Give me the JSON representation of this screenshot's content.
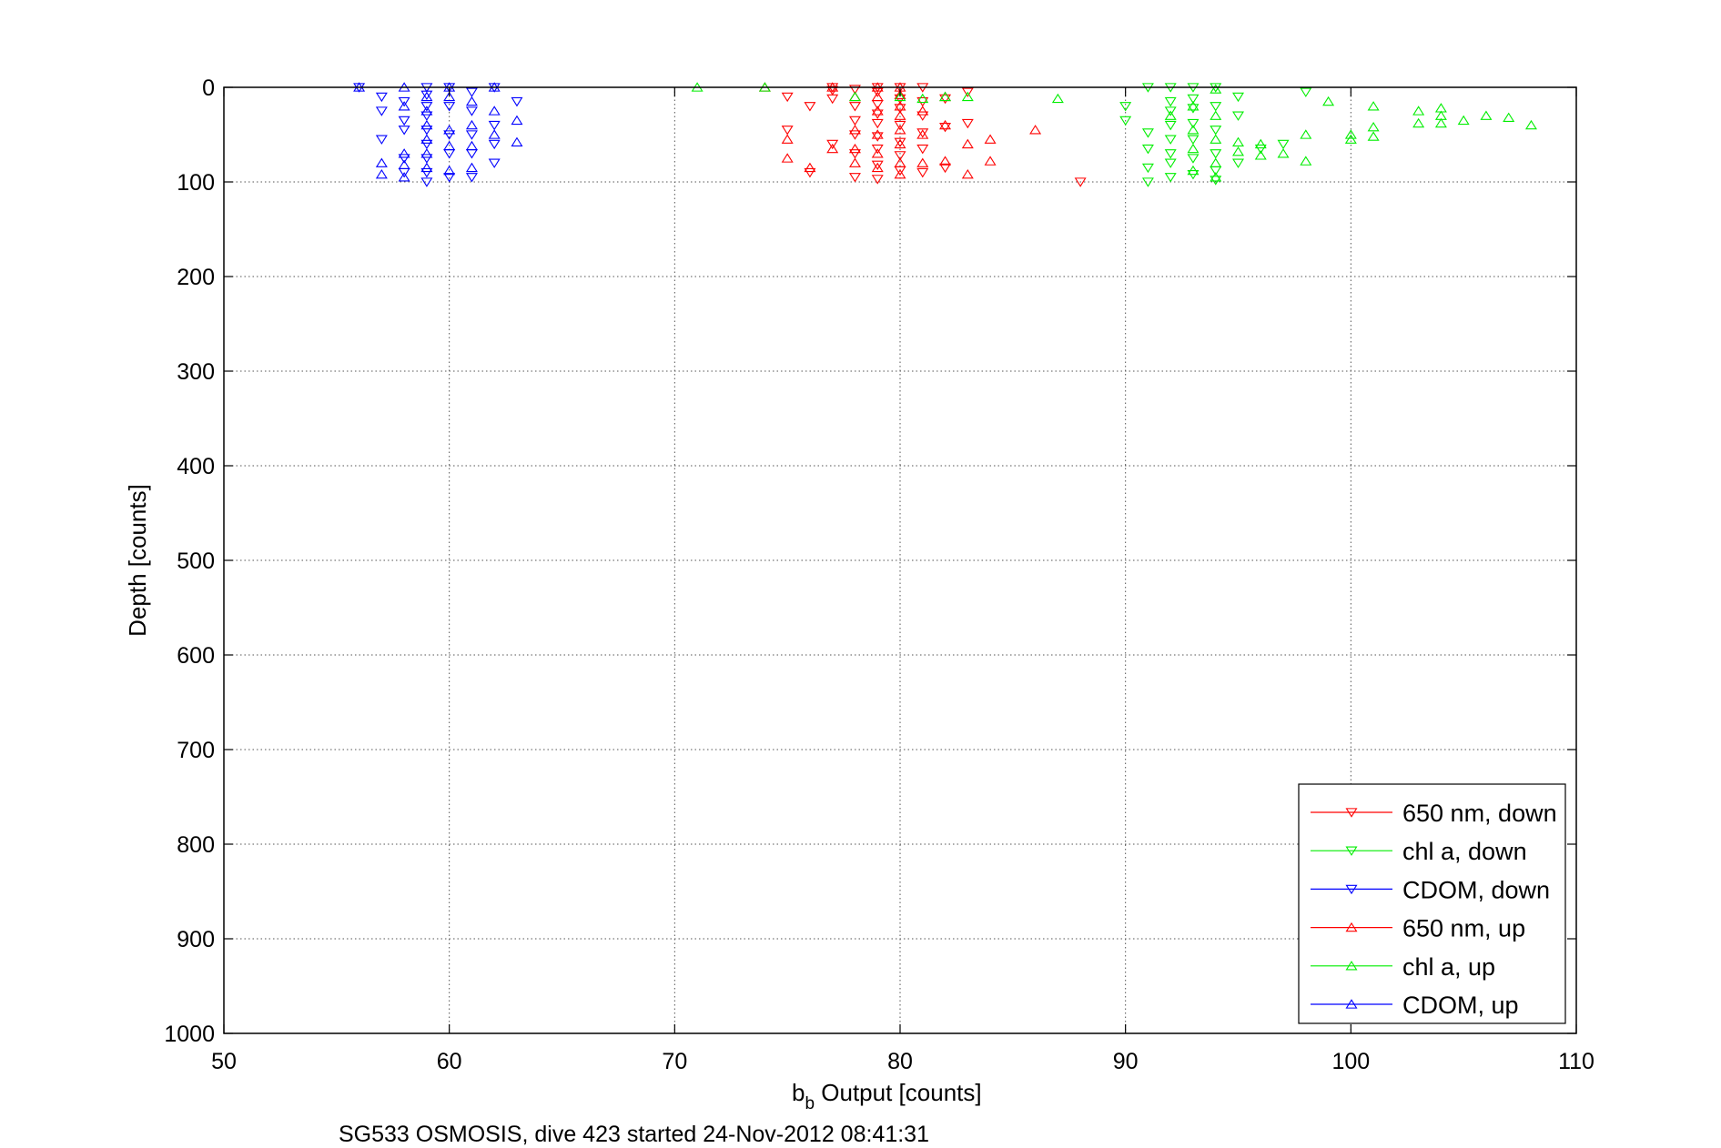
{
  "chart_data": {
    "type": "scatter",
    "xlabel_main": "b",
    "xlabel_sub": "b",
    "xlabel_rest": " Output [counts]",
    "ylabel": "Depth [counts]",
    "caption": "SG533 OSMOSIS, dive 423 started 24-Nov-2012 08:41:31",
    "xlim": [
      50,
      110
    ],
    "ylim": [
      0,
      1000
    ],
    "y_reversed": true,
    "grid": true,
    "legend_position": "bottom-right",
    "x_ticks": [
      "50",
      "60",
      "70",
      "80",
      "90",
      "100",
      "110"
    ],
    "y_ticks": [
      "0",
      "100",
      "200",
      "300",
      "400",
      "500",
      "600",
      "700",
      "800",
      "900",
      "1000"
    ],
    "series": [
      {
        "name": "650 nm, down",
        "color": "#ff0000",
        "marker": "triangle-down",
        "points": [
          [
            75,
            10
          ],
          [
            76,
            20
          ],
          [
            77,
            0
          ],
          [
            77,
            3
          ],
          [
            77,
            12
          ],
          [
            78,
            2
          ],
          [
            78,
            20
          ],
          [
            78,
            35
          ],
          [
            78,
            50
          ],
          [
            78,
            70
          ],
          [
            79,
            0
          ],
          [
            79,
            5
          ],
          [
            79,
            18
          ],
          [
            79,
            28
          ],
          [
            79,
            38
          ],
          [
            79,
            52
          ],
          [
            79,
            65
          ],
          [
            79,
            82
          ],
          [
            79,
            97
          ],
          [
            80,
            0
          ],
          [
            80,
            12
          ],
          [
            80,
            22
          ],
          [
            80,
            40
          ],
          [
            80,
            58
          ],
          [
            80,
            72
          ],
          [
            80,
            88
          ],
          [
            81,
            0
          ],
          [
            81,
            15
          ],
          [
            81,
            30
          ],
          [
            81,
            48
          ],
          [
            81,
            65
          ],
          [
            81,
            90
          ],
          [
            82,
            12
          ],
          [
            82,
            42
          ],
          [
            82,
            85
          ],
          [
            83,
            5
          ],
          [
            83,
            38
          ],
          [
            77,
            60
          ],
          [
            78,
            95
          ],
          [
            75,
            45
          ],
          [
            76,
            90
          ],
          [
            88,
            100
          ]
        ]
      },
      {
        "name": "chl a, down",
        "color": "#00ee00",
        "marker": "triangle-down",
        "points": [
          [
            90,
            20
          ],
          [
            90,
            35
          ],
          [
            91,
            0
          ],
          [
            91,
            48
          ],
          [
            91,
            65
          ],
          [
            91,
            85
          ],
          [
            91,
            100
          ],
          [
            92,
            0
          ],
          [
            92,
            15
          ],
          [
            92,
            25
          ],
          [
            92,
            40
          ],
          [
            92,
            55
          ],
          [
            92,
            70
          ],
          [
            92,
            80
          ],
          [
            92,
            95
          ],
          [
            93,
            0
          ],
          [
            93,
            12
          ],
          [
            93,
            22
          ],
          [
            93,
            38
          ],
          [
            93,
            55
          ],
          [
            93,
            75
          ],
          [
            93,
            92
          ],
          [
            94,
            0
          ],
          [
            94,
            20
          ],
          [
            94,
            45
          ],
          [
            94,
            70
          ],
          [
            94,
            88
          ],
          [
            94,
            98
          ],
          [
            95,
            10
          ],
          [
            95,
            30
          ],
          [
            95,
            80
          ],
          [
            96,
            65
          ],
          [
            97,
            60
          ],
          [
            98,
            5
          ]
        ]
      },
      {
        "name": "CDOM, down",
        "color": "#0000ff",
        "marker": "triangle-down",
        "points": [
          [
            56,
            0
          ],
          [
            57,
            10
          ],
          [
            57,
            25
          ],
          [
            57,
            55
          ],
          [
            58,
            15
          ],
          [
            58,
            35
          ],
          [
            58,
            45
          ],
          [
            58,
            75
          ],
          [
            58,
            90
          ],
          [
            59,
            0
          ],
          [
            59,
            8
          ],
          [
            59,
            20
          ],
          [
            59,
            30
          ],
          [
            59,
            45
          ],
          [
            59,
            60
          ],
          [
            59,
            75
          ],
          [
            59,
            90
          ],
          [
            59,
            100
          ],
          [
            60,
            0
          ],
          [
            60,
            20
          ],
          [
            60,
            50
          ],
          [
            60,
            70
          ],
          [
            60,
            95
          ],
          [
            61,
            5
          ],
          [
            61,
            25
          ],
          [
            61,
            50
          ],
          [
            61,
            70
          ],
          [
            61,
            95
          ],
          [
            62,
            0
          ],
          [
            62,
            40
          ],
          [
            62,
            60
          ],
          [
            62,
            80
          ],
          [
            63,
            15
          ]
        ]
      },
      {
        "name": "650 nm, up",
        "color": "#ff0000",
        "marker": "triangle-up",
        "points": [
          [
            74,
            0
          ],
          [
            75,
            55
          ],
          [
            75,
            75
          ],
          [
            76,
            85
          ],
          [
            77,
            0
          ],
          [
            77,
            65
          ],
          [
            78,
            10
          ],
          [
            78,
            45
          ],
          [
            78,
            65
          ],
          [
            78,
            80
          ],
          [
            79,
            0
          ],
          [
            79,
            10
          ],
          [
            79,
            25
          ],
          [
            79,
            50
          ],
          [
            79,
            70
          ],
          [
            79,
            85
          ],
          [
            80,
            0
          ],
          [
            80,
            8
          ],
          [
            80,
            20
          ],
          [
            80,
            30
          ],
          [
            80,
            45
          ],
          [
            80,
            60
          ],
          [
            80,
            80
          ],
          [
            80,
            92
          ],
          [
            81,
            25
          ],
          [
            81,
            50
          ],
          [
            81,
            80
          ],
          [
            82,
            10
          ],
          [
            82,
            40
          ],
          [
            82,
            78
          ],
          [
            83,
            60
          ],
          [
            83,
            92
          ],
          [
            84,
            55
          ],
          [
            84,
            78
          ],
          [
            86,
            45
          ]
        ]
      },
      {
        "name": "chl a, up",
        "color": "#00ee00",
        "marker": "triangle-up",
        "points": [
          [
            71,
            0
          ],
          [
            74,
            0
          ],
          [
            78,
            10
          ],
          [
            80,
            10
          ],
          [
            81,
            12
          ],
          [
            82,
            10
          ],
          [
            83,
            10
          ],
          [
            87,
            12
          ],
          [
            92,
            30
          ],
          [
            93,
            20
          ],
          [
            93,
            45
          ],
          [
            93,
            65
          ],
          [
            93,
            88
          ],
          [
            94,
            2
          ],
          [
            94,
            30
          ],
          [
            94,
            55
          ],
          [
            94,
            80
          ],
          [
            94,
            95
          ],
          [
            95,
            58
          ],
          [
            95,
            68
          ],
          [
            96,
            60
          ],
          [
            96,
            72
          ],
          [
            97,
            70
          ],
          [
            98,
            50
          ],
          [
            98,
            78
          ],
          [
            99,
            15
          ],
          [
            100,
            50
          ],
          [
            100,
            55
          ],
          [
            101,
            20
          ],
          [
            101,
            42
          ],
          [
            101,
            52
          ],
          [
            103,
            25
          ],
          [
            103,
            38
          ],
          [
            104,
            22
          ],
          [
            104,
            30
          ],
          [
            104,
            38
          ],
          [
            105,
            35
          ],
          [
            106,
            30
          ],
          [
            107,
            32
          ],
          [
            108,
            40
          ]
        ]
      },
      {
        "name": "CDOM, up",
        "color": "#0000ff",
        "marker": "triangle-up",
        "points": [
          [
            56,
            0
          ],
          [
            57,
            80
          ],
          [
            57,
            92
          ],
          [
            58,
            0
          ],
          [
            58,
            20
          ],
          [
            58,
            70
          ],
          [
            58,
            82
          ],
          [
            58,
            95
          ],
          [
            59,
            10
          ],
          [
            59,
            25
          ],
          [
            59,
            40
          ],
          [
            59,
            55
          ],
          [
            59,
            70
          ],
          [
            59,
            85
          ],
          [
            60,
            0
          ],
          [
            60,
            10
          ],
          [
            60,
            45
          ],
          [
            60,
            62
          ],
          [
            60,
            88
          ],
          [
            61,
            15
          ],
          [
            61,
            40
          ],
          [
            61,
            62
          ],
          [
            61,
            85
          ],
          [
            62,
            0
          ],
          [
            62,
            25
          ],
          [
            62,
            50
          ],
          [
            63,
            35
          ],
          [
            63,
            58
          ]
        ]
      }
    ]
  }
}
